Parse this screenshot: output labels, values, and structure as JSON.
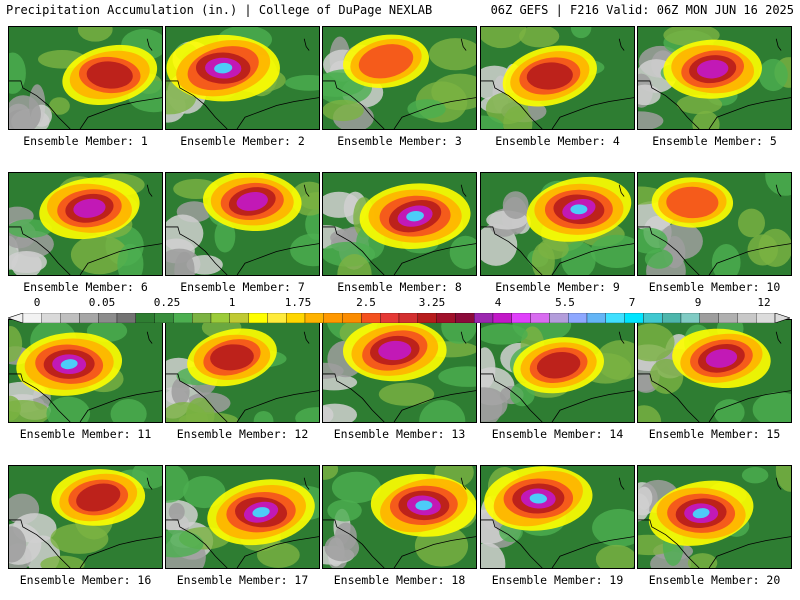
{
  "header": {
    "left": "Precipitation Accumulation (in.) | College of DuPage NEXLAB",
    "right": "06Z GEFS | F216 Valid: 06Z MON JUN 16 2025"
  },
  "colorbar": {
    "labels": [
      "0",
      "0.05",
      "0.25",
      "1",
      "1.75",
      "2.5",
      "3.25",
      "4",
      "5.5",
      "7",
      "9",
      "12"
    ],
    "colors": [
      "#f2f2f2",
      "#d9d9d9",
      "#bfbfbf",
      "#a6a6a6",
      "#8c8c8c",
      "#737373",
      "#2e7d32",
      "#388e3c",
      "#4caf50",
      "#7cb342",
      "#9ccc3a",
      "#c0ca33",
      "#ffff00",
      "#ffeb3b",
      "#ffd600",
      "#ffb300",
      "#ff9800",
      "#fb8c00",
      "#f4511e",
      "#e53935",
      "#d32f2f",
      "#b71c1c",
      "#a0102a",
      "#8b0a3a",
      "#9c27b0",
      "#c218c8",
      "#e040fb",
      "#d86cf0",
      "#b39ddb",
      "#8ea8ff",
      "#64b5f6",
      "#40e0ff",
      "#00e5ff",
      "#40c8d0",
      "#4db6ac",
      "#80cbc4",
      "#9e9e9e",
      "#b0b0b0",
      "#c8c8c8",
      "#dcdcdc"
    ]
  },
  "members": [
    {
      "label": "Ensemble Member: 1"
    },
    {
      "label": "Ensemble Member: 2"
    },
    {
      "label": "Ensemble Member: 3"
    },
    {
      "label": "Ensemble Member: 4"
    },
    {
      "label": "Ensemble Member: 5"
    },
    {
      "label": "Ensemble Member: 6"
    },
    {
      "label": "Ensemble Member: 7"
    },
    {
      "label": "Ensemble Member: 8"
    },
    {
      "label": "Ensemble Member: 9"
    },
    {
      "label": "Ensemble Member: 10"
    },
    {
      "label": "Ensemble Member: 11"
    },
    {
      "label": "Ensemble Member: 12"
    },
    {
      "label": "Ensemble Member: 13"
    },
    {
      "label": "Ensemble Member: 14"
    },
    {
      "label": "Ensemble Member: 15"
    },
    {
      "label": "Ensemble Member: 16"
    },
    {
      "label": "Ensemble Member: 17"
    },
    {
      "label": "Ensemble Member: 18"
    },
    {
      "label": "Ensemble Member: 19"
    },
    {
      "label": "Ensemble Member: 20"
    }
  ]
}
